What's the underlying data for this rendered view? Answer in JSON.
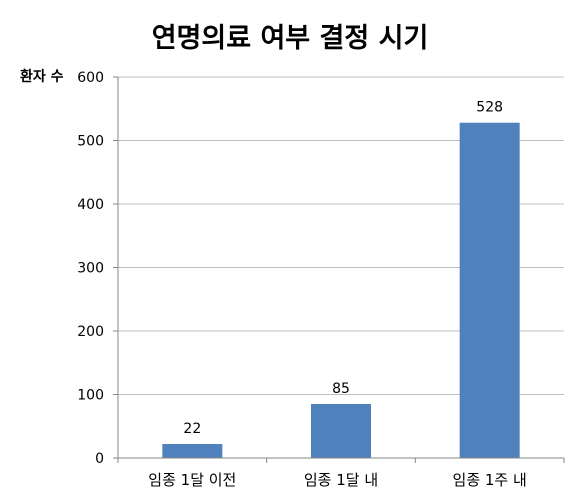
{
  "chart_data": {
    "type": "bar",
    "title": "연명의료 여부 결정 시기",
    "ylabel": "환자 수",
    "xlabel": "",
    "categories": [
      "임종 1달 이전",
      "임종 1달 내",
      "임종 1주 내"
    ],
    "values": [
      22,
      85,
      528
    ],
    "data_labels": [
      "22",
      "85",
      "528"
    ],
    "ylim": [
      0,
      600
    ],
    "yticks": [
      0,
      100,
      200,
      300,
      400,
      500,
      600
    ],
    "grid": true,
    "legend": "none",
    "bar_color": "#4F81BD",
    "grid_color": "#BFBFBF"
  }
}
